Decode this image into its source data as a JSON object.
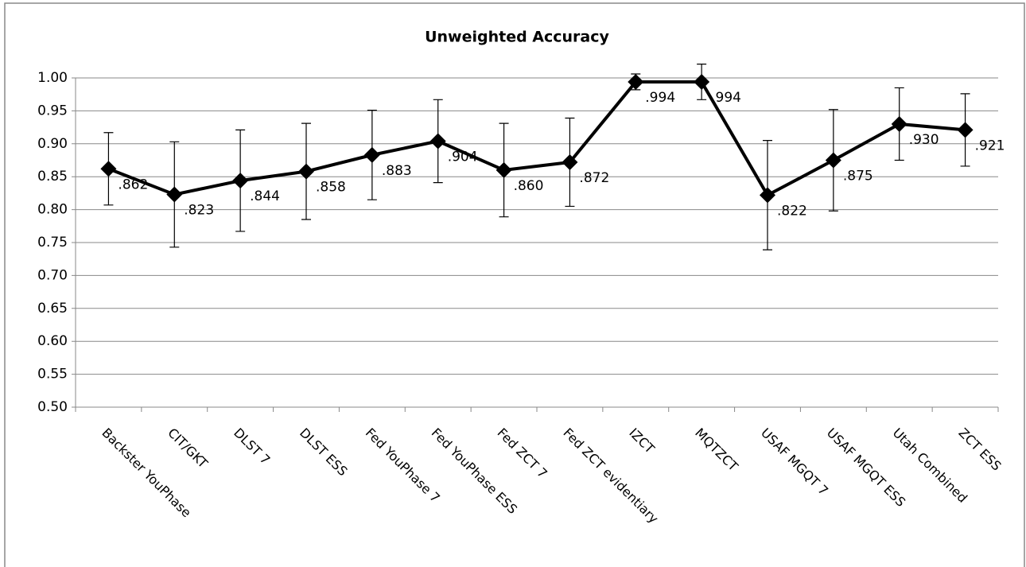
{
  "chart_data": {
    "type": "line",
    "title": "Unweighted Accuracy",
    "categories": [
      "Backster YouPhase",
      "CIT/GKT",
      "DLST 7",
      "DLST ESS",
      "Fed YouPhase 7",
      "Fed YouPhase ESS",
      "Fed ZCT 7",
      "Fed ZCT evidentiary",
      "IZCT",
      "MQTZCT",
      "USAF MGQT 7",
      "USAF MGQT ESS",
      "Utah Combined",
      "ZCT ESS"
    ],
    "values": [
      0.862,
      0.823,
      0.844,
      0.858,
      0.883,
      0.904,
      0.86,
      0.872,
      0.994,
      0.994,
      0.822,
      0.875,
      0.93,
      0.921
    ],
    "value_labels": [
      ".862",
      ".823",
      ".844",
      ".858",
      ".883",
      ".904",
      ".860",
      ".872",
      ".994",
      ".994",
      ".822",
      ".875",
      ".930",
      ".921"
    ],
    "errors": [
      0.055,
      0.08,
      0.077,
      0.073,
      0.068,
      0.063,
      0.071,
      0.067,
      0.012,
      0.027,
      0.083,
      0.077,
      0.055,
      0.055
    ],
    "color": "#000000",
    "ylim": [
      0.5,
      1.0
    ],
    "yticks": [
      {
        "value": 0.5,
        "label": "0.50"
      },
      0.55,
      {
        "value": 0.6,
        "label": "0.60"
      },
      0.65,
      {
        "value": 0.7,
        "label": "0.70"
      },
      0.75,
      {
        "value": 0.8,
        "label": "0.80"
      },
      0.85,
      {
        "value": 0.9,
        "label": "0.90"
      },
      0.95,
      {
        "value": 1.0,
        "label": "1.00"
      }
    ],
    "grid": true
  }
}
